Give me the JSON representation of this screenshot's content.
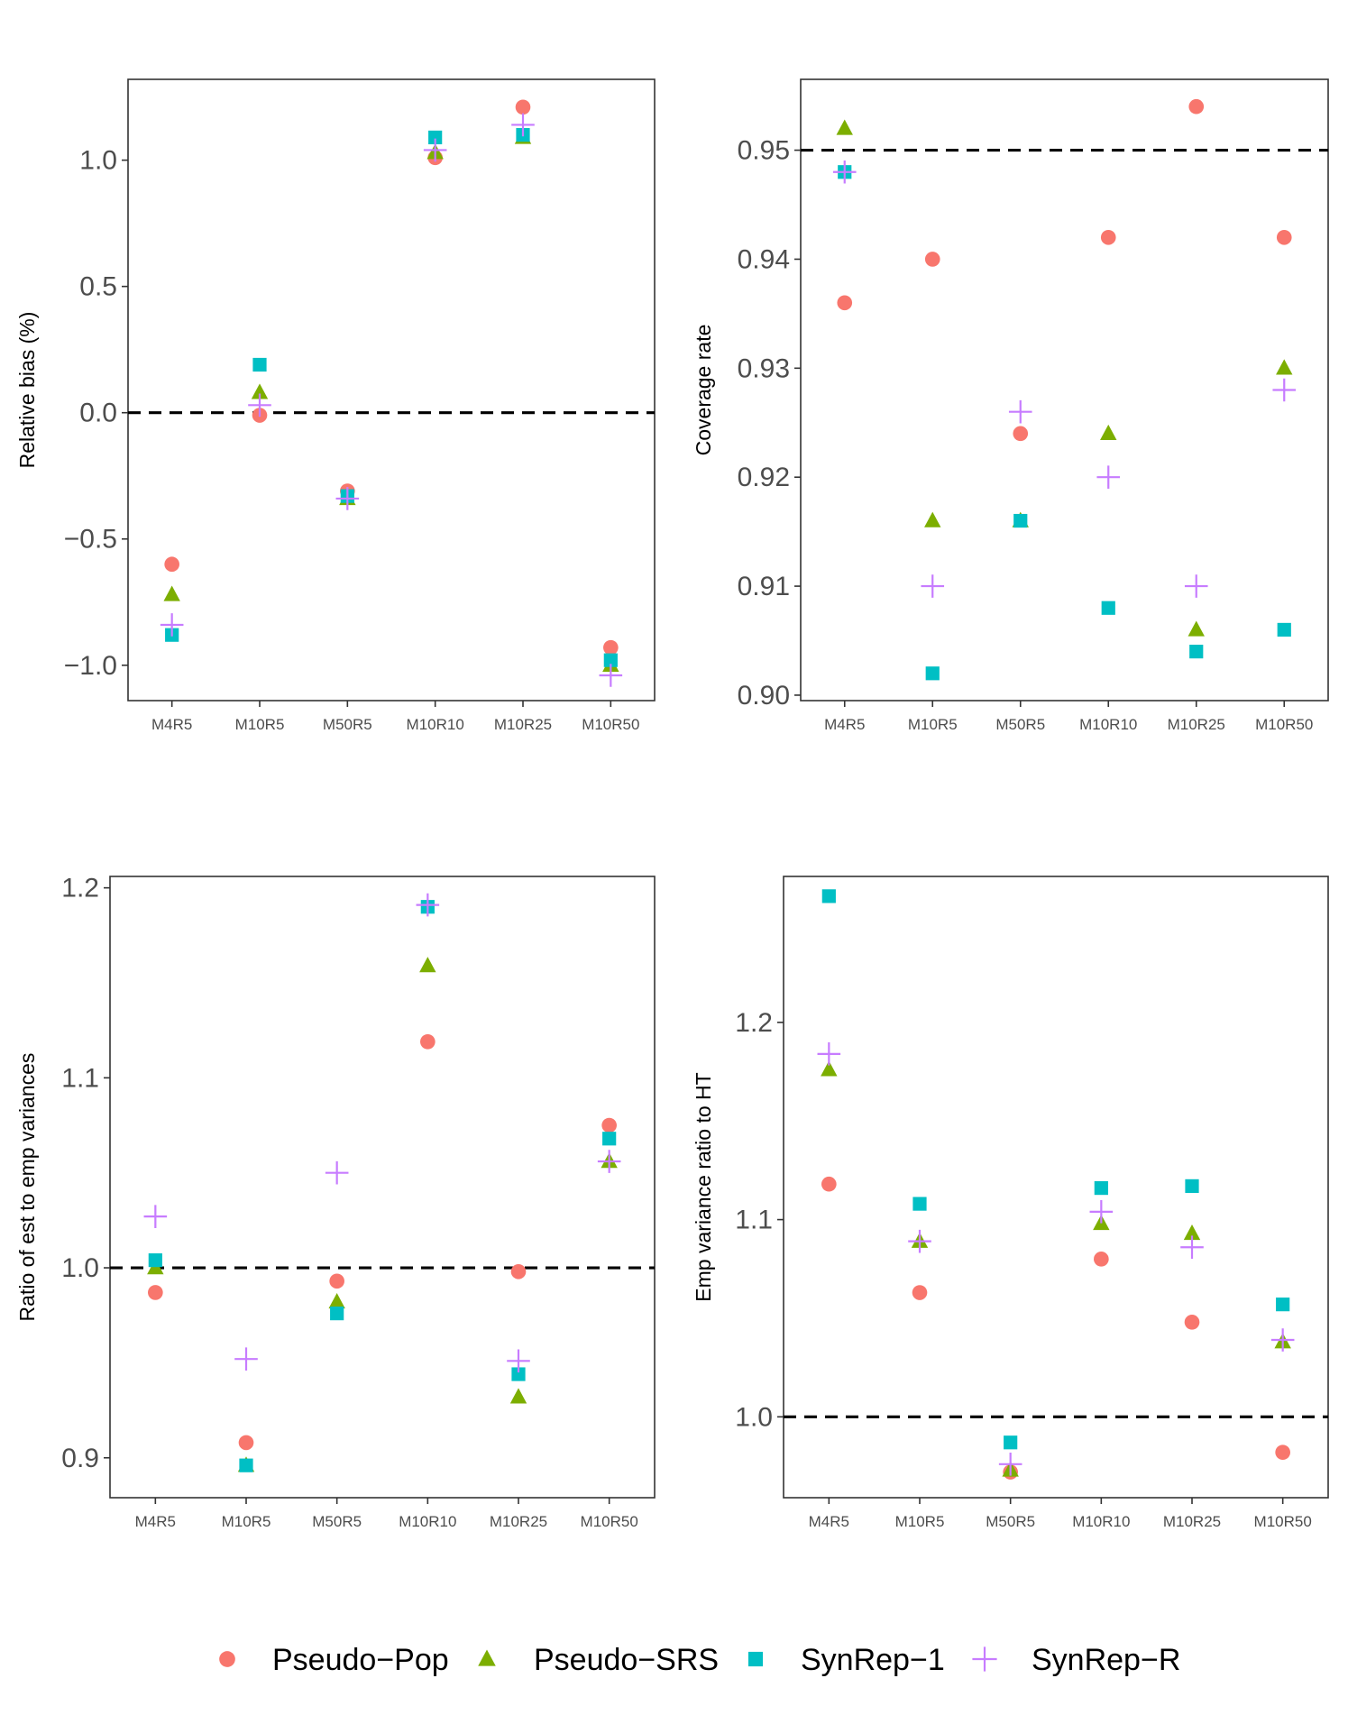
{
  "categories": [
    "M4R5",
    "M10R5",
    "M50R5",
    "M10R10",
    "M10R25",
    "M10R50"
  ],
  "series_styles": [
    {
      "name": "Pseudo-Pop",
      "label": "Pseudo−Pop",
      "shape": "circle",
      "color": "#F8766D"
    },
    {
      "name": "Pseudo-SRS",
      "label": "Pseudo−SRS",
      "shape": "triangle",
      "color": "#7CAE00"
    },
    {
      "name": "SynRep-1",
      "label": "SynRep−1",
      "shape": "square",
      "color": "#00BFC4"
    },
    {
      "name": "SynRep-R",
      "label": "SynRep−R",
      "shape": "plus",
      "color": "#C77CFF"
    }
  ],
  "chart_data": [
    {
      "type": "scatter",
      "title": "",
      "ylabel": "Relative bias (%)",
      "xlabel": "",
      "ylim": [
        -1.14,
        1.32
      ],
      "yticks": [
        1.0,
        0.5,
        0.0,
        -0.5,
        -1.0
      ],
      "ytick_labels": [
        "1.0",
        "0.5",
        "0.0",
        "−0.5",
        "−1.0"
      ],
      "reference_line": 0.0,
      "series": [
        {
          "name": "Pseudo-Pop",
          "values": [
            -0.6,
            -0.01,
            -0.31,
            1.01,
            1.21,
            -0.93
          ]
        },
        {
          "name": "Pseudo-SRS",
          "values": [
            -0.72,
            0.08,
            -0.34,
            1.03,
            1.09,
            -1.0
          ]
        },
        {
          "name": "SynRep-1",
          "values": [
            -0.88,
            0.19,
            -0.33,
            1.09,
            1.1,
            -0.98
          ]
        },
        {
          "name": "SynRep-R",
          "values": [
            -0.84,
            0.03,
            -0.34,
            1.04,
            1.14,
            -1.04
          ]
        }
      ]
    },
    {
      "type": "scatter",
      "title": "",
      "ylabel": "Coverage rate",
      "xlabel": "",
      "ylim": [
        0.8995,
        0.9565
      ],
      "yticks": [
        0.95,
        0.94,
        0.93,
        0.92,
        0.91,
        0.9
      ],
      "ytick_labels": [
        "0.95",
        "0.94",
        "0.93",
        "0.92",
        "0.91",
        "0.90"
      ],
      "reference_line": 0.95,
      "series": [
        {
          "name": "Pseudo-Pop",
          "values": [
            0.936,
            0.94,
            0.924,
            0.942,
            0.954,
            0.942
          ]
        },
        {
          "name": "Pseudo-SRS",
          "values": [
            0.952,
            0.916,
            0.916,
            0.924,
            0.906,
            0.93
          ]
        },
        {
          "name": "SynRep-1",
          "values": [
            0.948,
            0.902,
            0.916,
            0.908,
            0.904,
            0.906
          ]
        },
        {
          "name": "SynRep-R",
          "values": [
            0.948,
            0.91,
            0.926,
            0.92,
            0.91,
            0.928
          ]
        }
      ]
    },
    {
      "type": "scatter",
      "title": "",
      "ylabel": "Ratio of est to emp variances",
      "xlabel": "",
      "ylim": [
        0.879,
        1.206
      ],
      "yticks": [
        1.2,
        1.1,
        1.0,
        0.9
      ],
      "ytick_labels": [
        "1.2",
        "1.1",
        "1.0",
        "0.9"
      ],
      "reference_line": 1.0,
      "series": [
        {
          "name": "Pseudo-Pop",
          "values": [
            0.987,
            0.908,
            0.993,
            1.119,
            0.998,
            1.075
          ]
        },
        {
          "name": "Pseudo-SRS",
          "values": [
            1.0,
            0.896,
            0.982,
            1.159,
            0.932,
            1.056
          ]
        },
        {
          "name": "SynRep-1",
          "values": [
            1.004,
            0.896,
            0.976,
            1.19,
            0.944,
            1.068
          ]
        },
        {
          "name": "SynRep-R",
          "values": [
            1.027,
            0.952,
            1.05,
            1.191,
            0.951,
            1.056
          ]
        }
      ]
    },
    {
      "type": "scatter",
      "title": "",
      "ylabel": "Emp variance ratio to HT",
      "xlabel": "",
      "ylim": [
        0.959,
        1.274
      ],
      "yticks": [
        1.2,
        1.1,
        1.0
      ],
      "ytick_labels": [
        "1.2",
        "1.1",
        "1.0"
      ],
      "reference_line": 1.0,
      "series": [
        {
          "name": "Pseudo-Pop",
          "values": [
            1.118,
            1.063,
            0.972,
            1.08,
            1.048,
            0.982
          ]
        },
        {
          "name": "Pseudo-SRS",
          "values": [
            1.176,
            1.089,
            0.973,
            1.098,
            1.093,
            1.038
          ]
        },
        {
          "name": "SynRep-1",
          "values": [
            1.264,
            1.108,
            0.987,
            1.116,
            1.117,
            1.057
          ]
        },
        {
          "name": "SynRep-R",
          "values": [
            1.184,
            1.089,
            0.976,
            1.104,
            1.086,
            1.039
          ]
        }
      ]
    }
  ]
}
